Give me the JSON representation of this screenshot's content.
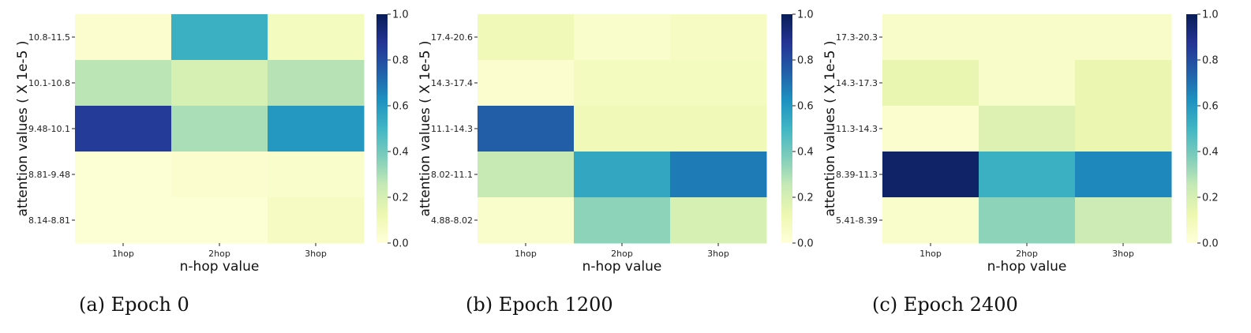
{
  "chart_data": [
    {
      "type": "heatmap",
      "caption": "(a) Epoch 0",
      "xlabel": "n-hop value",
      "ylabel": "attention values ( X 1e-5 )",
      "x_categories": [
        "1hop",
        "2hop",
        "3hop"
      ],
      "y_categories": [
        "10.8-11.5",
        "10.1-10.8",
        "9.48-10.1",
        "8.81-9.48",
        "8.14-8.81"
      ],
      "values": [
        [
          0.03,
          0.52,
          0.08
        ],
        [
          0.27,
          0.2,
          0.28
        ],
        [
          0.85,
          0.3,
          0.6
        ],
        [
          0.02,
          0.03,
          0.04
        ],
        [
          0.02,
          0.02,
          0.07
        ]
      ],
      "colorbar": {
        "min": 0.0,
        "max": 1.0,
        "ticks": [
          "0.0",
          "0.2",
          "0.4",
          "0.6",
          "0.8",
          "1.0"
        ]
      }
    },
    {
      "type": "heatmap",
      "caption": "(b) Epoch 1200",
      "xlabel": "n-hop value",
      "ylabel": "attention values ( X 1e-5 )",
      "x_categories": [
        "1hop",
        "2hop",
        "3hop"
      ],
      "y_categories": [
        "17.4-20.6",
        "14.3-17.4",
        "11.1-14.3",
        "8.02-11.1",
        "4.88-8.02"
      ],
      "values": [
        [
          0.1,
          0.04,
          0.07
        ],
        [
          0.03,
          0.08,
          0.08
        ],
        [
          0.75,
          0.1,
          0.1
        ],
        [
          0.25,
          0.55,
          0.68
        ],
        [
          0.04,
          0.35,
          0.2
        ]
      ],
      "colorbar": {
        "min": 0.0,
        "max": 1.0,
        "ticks": [
          "0.0",
          "0.2",
          "0.4",
          "0.6",
          "0.8",
          "1.0"
        ]
      }
    },
    {
      "type": "heatmap",
      "caption": "(c) Epoch 2400",
      "xlabel": "n-hop value",
      "ylabel": "attention values ( X 1e-5 )",
      "x_categories": [
        "1hop",
        "2hop",
        "3hop"
      ],
      "y_categories": [
        "17.3-20.3",
        "14.3-17.3",
        "11.3-14.3",
        "8.39-11.3",
        "5.41-8.39"
      ],
      "values": [
        [
          0.05,
          0.05,
          0.05
        ],
        [
          0.14,
          0.05,
          0.13
        ],
        [
          0.03,
          0.18,
          0.13
        ],
        [
          0.97,
          0.52,
          0.65
        ],
        [
          0.04,
          0.35,
          0.23
        ]
      ],
      "colorbar": {
        "min": 0.0,
        "max": 1.0,
        "ticks": [
          "0.0",
          "0.2",
          "0.4",
          "0.6",
          "0.8",
          "1.0"
        ]
      }
    }
  ],
  "colormap": {
    "name": "YlGnBu",
    "stops": [
      "#ffffd9",
      "#edf8b1",
      "#c7e9b4",
      "#7fcdbb",
      "#41b6c4",
      "#1d91c0",
      "#225ea8",
      "#253494",
      "#081d58"
    ]
  }
}
